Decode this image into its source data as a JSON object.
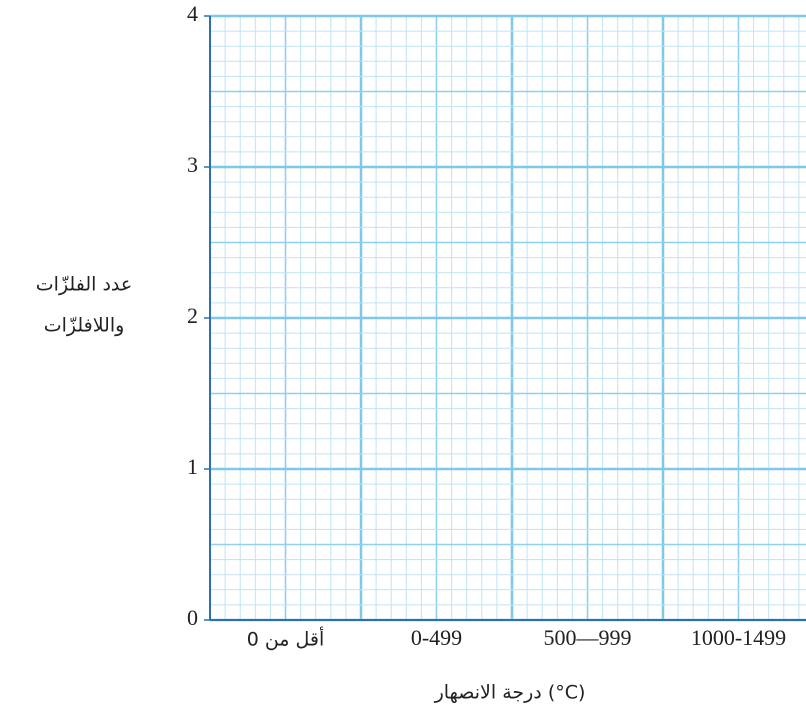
{
  "chart_data": {
    "type": "bar",
    "categories": [
      "أقل من 0",
      "0-499",
      "500—999",
      "1000-1499"
    ],
    "xlabel": "درجة الانصهار (°C)",
    "ylabel": [
      "عدد الفلزّات",
      "واللافلزّات"
    ],
    "ylim": [
      0,
      4
    ],
    "yticks": [
      0,
      1,
      2,
      3,
      4
    ],
    "grid": true,
    "color": "#7ec8ea"
  }
}
